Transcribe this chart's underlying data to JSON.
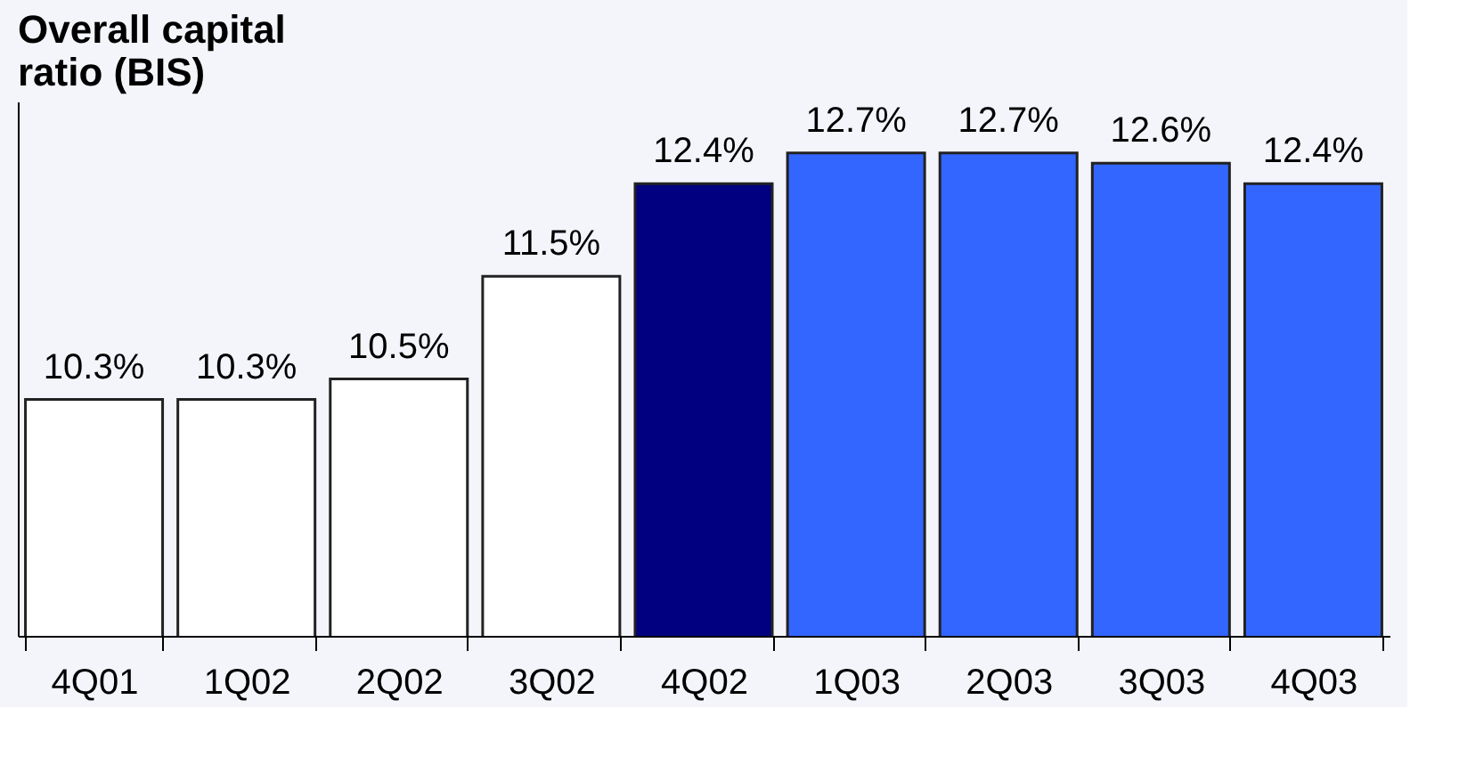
{
  "chart_data": {
    "type": "bar",
    "title": "Overall capital\nratio (BIS)",
    "categories": [
      "4Q01",
      "1Q02",
      "2Q02",
      "3Q02",
      "4Q02",
      "1Q03",
      "2Q03",
      "3Q03",
      "4Q03"
    ],
    "values": [
      10.3,
      10.3,
      10.5,
      11.5,
      12.4,
      12.7,
      12.7,
      12.6,
      12.4
    ],
    "value_labels": [
      "10.3%",
      "10.3%",
      "10.5%",
      "11.5%",
      "12.4%",
      "12.7%",
      "12.7%",
      "12.6%",
      "12.4%"
    ],
    "colors": [
      "#ffffff",
      "#ffffff",
      "#ffffff",
      "#ffffff",
      "#000080",
      "#3366ff",
      "#3366ff",
      "#3366ff",
      "#3366ff"
    ],
    "ylim": [
      8,
      13.2
    ],
    "tick_labels": "x",
    "grid": false
  }
}
